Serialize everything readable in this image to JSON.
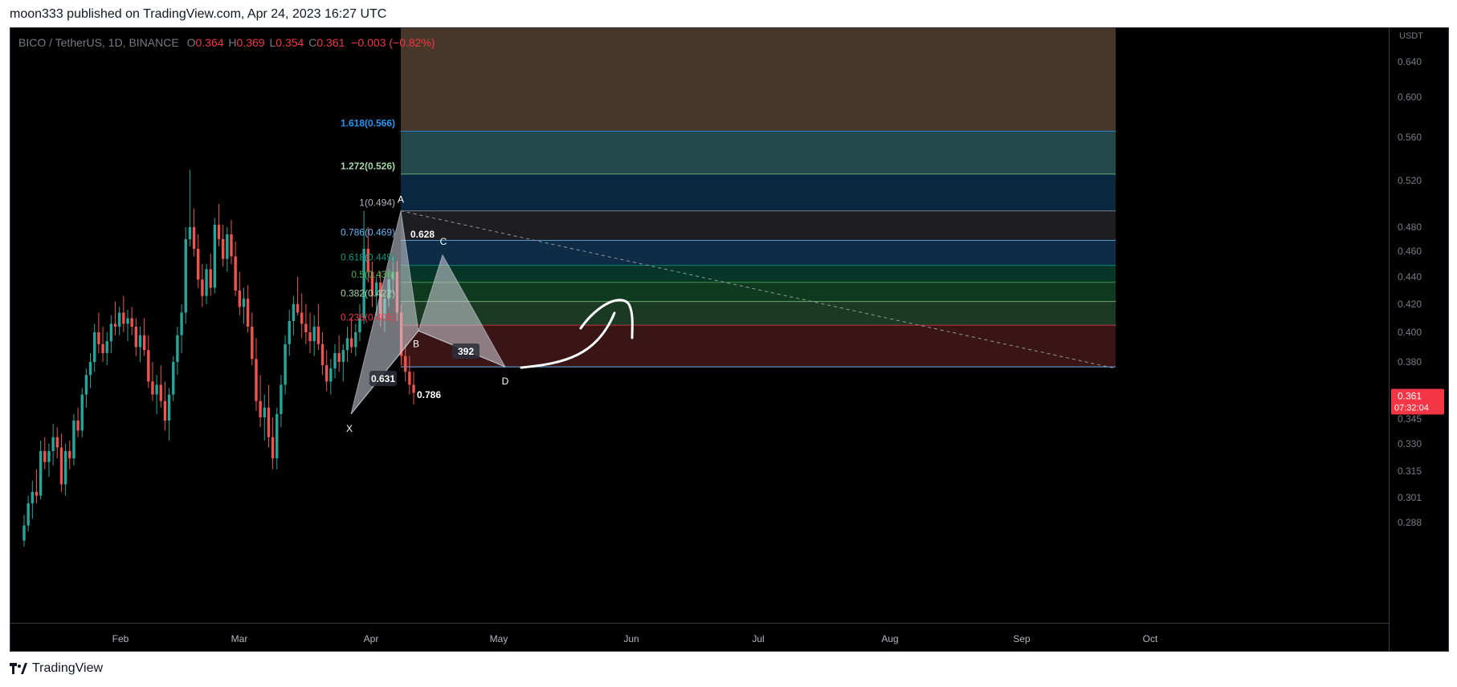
{
  "header": {
    "published": "moon333 published on TradingView.com, Apr 24, 2023 16:27 UTC"
  },
  "legend": {
    "symbol": "BICO / TetherUS, 1D, BINANCE",
    "open_label": "O",
    "open": "0.364",
    "high_label": "H",
    "high": "0.369",
    "low_label": "L",
    "low": "0.354",
    "close_label": "C",
    "close": "0.361",
    "change": "−0.003 (−0.82%)"
  },
  "price_scale": {
    "currency": "USDT",
    "ticks": [
      "0.640",
      "0.600",
      "0.560",
      "0.520",
      "0.480",
      "0.460",
      "0.440",
      "0.420",
      "0.400",
      "0.380",
      "0.345",
      "0.330",
      "0.315",
      "0.301",
      "0.288"
    ],
    "last_price": "0.361",
    "countdown": "07:32:04"
  },
  "footer": {
    "brand": "TradingView"
  },
  "colors": {
    "up": "#26a69a",
    "down": "#ef5350",
    "price_badge": "#f23645"
  },
  "chart_data": {
    "type": "candlestick",
    "timeframe": "1D",
    "x_ticks": [
      "Feb",
      "Mar",
      "Apr",
      "May",
      "Jun",
      "Jul",
      "Aug",
      "Sep",
      "Oct"
    ],
    "ylim": [
      0.28,
      0.66
    ],
    "ohlc": [
      [
        0.276,
        0.292,
        0.272,
        0.286
      ],
      [
        0.286,
        0.302,
        0.282,
        0.298
      ],
      [
        0.298,
        0.31,
        0.29,
        0.304
      ],
      [
        0.304,
        0.316,
        0.298,
        0.302
      ],
      [
        0.302,
        0.332,
        0.3,
        0.326
      ],
      [
        0.326,
        0.334,
        0.316,
        0.32
      ],
      [
        0.32,
        0.33,
        0.312,
        0.326
      ],
      [
        0.326,
        0.342,
        0.318,
        0.334
      ],
      [
        0.334,
        0.34,
        0.322,
        0.328
      ],
      [
        0.328,
        0.336,
        0.304,
        0.308
      ],
      [
        0.308,
        0.33,
        0.302,
        0.326
      ],
      [
        0.326,
        0.332,
        0.316,
        0.322
      ],
      [
        0.322,
        0.348,
        0.318,
        0.344
      ],
      [
        0.344,
        0.352,
        0.334,
        0.338
      ],
      [
        0.338,
        0.364,
        0.334,
        0.36
      ],
      [
        0.36,
        0.376,
        0.352,
        0.372
      ],
      [
        0.372,
        0.386,
        0.364,
        0.38
      ],
      [
        0.38,
        0.406,
        0.374,
        0.4
      ],
      [
        0.4,
        0.414,
        0.386,
        0.392
      ],
      [
        0.392,
        0.404,
        0.38,
        0.386
      ],
      [
        0.386,
        0.4,
        0.378,
        0.394
      ],
      [
        0.394,
        0.412,
        0.386,
        0.406
      ],
      [
        0.406,
        0.422,
        0.398,
        0.404
      ],
      [
        0.404,
        0.418,
        0.398,
        0.414
      ],
      [
        0.414,
        0.426,
        0.4,
        0.406
      ],
      [
        0.406,
        0.416,
        0.394,
        0.41
      ],
      [
        0.41,
        0.418,
        0.398,
        0.404
      ],
      [
        0.404,
        0.41,
        0.384,
        0.39
      ],
      [
        0.39,
        0.404,
        0.38,
        0.398
      ],
      [
        0.398,
        0.41,
        0.384,
        0.388
      ],
      [
        0.388,
        0.398,
        0.364,
        0.368
      ],
      [
        0.368,
        0.38,
        0.356,
        0.36
      ],
      [
        0.36,
        0.372,
        0.348,
        0.366
      ],
      [
        0.366,
        0.378,
        0.352,
        0.356
      ],
      [
        0.356,
        0.368,
        0.338,
        0.344
      ],
      [
        0.344,
        0.364,
        0.332,
        0.36
      ],
      [
        0.36,
        0.384,
        0.356,
        0.38
      ],
      [
        0.38,
        0.404,
        0.372,
        0.398
      ],
      [
        0.398,
        0.42,
        0.386,
        0.414
      ],
      [
        0.414,
        0.48,
        0.406,
        0.47
      ],
      [
        0.47,
        0.53,
        0.464,
        0.48
      ],
      [
        0.48,
        0.496,
        0.456,
        0.462
      ],
      [
        0.462,
        0.474,
        0.432,
        0.438
      ],
      [
        0.438,
        0.45,
        0.418,
        0.426
      ],
      [
        0.426,
        0.45,
        0.42,
        0.446
      ],
      [
        0.446,
        0.458,
        0.426,
        0.432
      ],
      [
        0.432,
        0.488,
        0.428,
        0.482
      ],
      [
        0.482,
        0.5,
        0.464,
        0.47
      ],
      [
        0.47,
        0.482,
        0.448,
        0.454
      ],
      [
        0.454,
        0.48,
        0.444,
        0.474
      ],
      [
        0.474,
        0.486,
        0.45,
        0.456
      ],
      [
        0.456,
        0.468,
        0.426,
        0.43
      ],
      [
        0.43,
        0.444,
        0.412,
        0.418
      ],
      [
        0.418,
        0.432,
        0.406,
        0.424
      ],
      [
        0.424,
        0.434,
        0.4,
        0.404
      ],
      [
        0.404,
        0.414,
        0.378,
        0.382
      ],
      [
        0.382,
        0.396,
        0.35,
        0.356
      ],
      [
        0.356,
        0.372,
        0.34,
        0.346
      ],
      [
        0.346,
        0.36,
        0.332,
        0.352
      ],
      [
        0.352,
        0.366,
        0.328,
        0.334
      ],
      [
        0.334,
        0.346,
        0.316,
        0.322
      ],
      [
        0.322,
        0.352,
        0.316,
        0.348
      ],
      [
        0.348,
        0.372,
        0.34,
        0.366
      ],
      [
        0.366,
        0.398,
        0.36,
        0.392
      ],
      [
        0.392,
        0.416,
        0.384,
        0.408
      ],
      [
        0.408,
        0.426,
        0.398,
        0.42
      ],
      [
        0.42,
        0.44,
        0.412,
        0.414
      ],
      [
        0.414,
        0.428,
        0.396,
        0.406
      ],
      [
        0.406,
        0.42,
        0.392,
        0.4
      ],
      [
        0.4,
        0.414,
        0.386,
        0.394
      ],
      [
        0.394,
        0.412,
        0.384,
        0.404
      ],
      [
        0.404,
        0.42,
        0.388,
        0.392
      ],
      [
        0.392,
        0.4,
        0.372,
        0.378
      ],
      [
        0.378,
        0.388,
        0.362,
        0.368
      ],
      [
        0.368,
        0.382,
        0.36,
        0.376
      ],
      [
        0.376,
        0.392,
        0.37,
        0.386
      ],
      [
        0.386,
        0.398,
        0.374,
        0.38
      ],
      [
        0.38,
        0.392,
        0.368,
        0.388
      ],
      [
        0.388,
        0.404,
        0.38,
        0.396
      ],
      [
        0.396,
        0.41,
        0.386,
        0.39
      ],
      [
        0.39,
        0.406,
        0.384,
        0.4
      ],
      [
        0.4,
        0.42,
        0.394,
        0.41
      ],
      [
        0.41,
        0.494,
        0.406,
        0.462
      ],
      [
        0.462,
        0.48,
        0.436,
        0.444
      ],
      [
        0.444,
        0.452,
        0.418,
        0.426
      ],
      [
        0.426,
        0.44,
        0.412,
        0.436
      ],
      [
        0.436,
        0.444,
        0.404,
        0.41
      ],
      [
        0.41,
        0.428,
        0.4,
        0.424
      ],
      [
        0.424,
        0.446,
        0.418,
        0.438
      ],
      [
        0.438,
        0.456,
        0.428,
        0.444
      ],
      [
        0.444,
        0.452,
        0.408,
        0.414
      ],
      [
        0.414,
        0.42,
        0.378,
        0.384
      ],
      [
        0.384,
        0.392,
        0.368,
        0.374
      ],
      [
        0.374,
        0.384,
        0.36,
        0.366
      ],
      [
        0.366,
        0.374,
        0.354,
        0.361
      ]
    ],
    "fib_levels": [
      {
        "label": "1.618(0.566)",
        "value": 0.566,
        "color": "#2196f3"
      },
      {
        "label": "1.272(0.526)",
        "value": 0.526,
        "color": "#81c784"
      },
      {
        "label": "1(0.494)",
        "value": 0.494,
        "color": "#787b86"
      },
      {
        "label": "0.786(0.469)",
        "value": 0.469,
        "color": "#64b5f6"
      },
      {
        "label": "0.618(0.449)",
        "value": 0.449,
        "color": "#089981"
      },
      {
        "label": "0.5(0.436)",
        "value": 0.436,
        "color": "#4caf50"
      },
      {
        "label": "0.382(0.422)",
        "value": 0.422,
        "color": "#81c784"
      },
      {
        "label": "0.236(0.405)",
        "value": 0.405,
        "color": "#f23645"
      }
    ],
    "fib_base": {
      "value": 0.377
    },
    "pattern": {
      "points": [
        {
          "label": "X",
          "value": 0.348
        },
        {
          "label": "A",
          "value": 0.494
        },
        {
          "label": "B",
          "value": 0.401
        },
        {
          "label": "C",
          "value": 0.457
        },
        {
          "label": "D",
          "value": 0.377
        }
      ],
      "ratios": [
        "0.628",
        "0.631",
        "392",
        "0.786"
      ]
    }
  }
}
